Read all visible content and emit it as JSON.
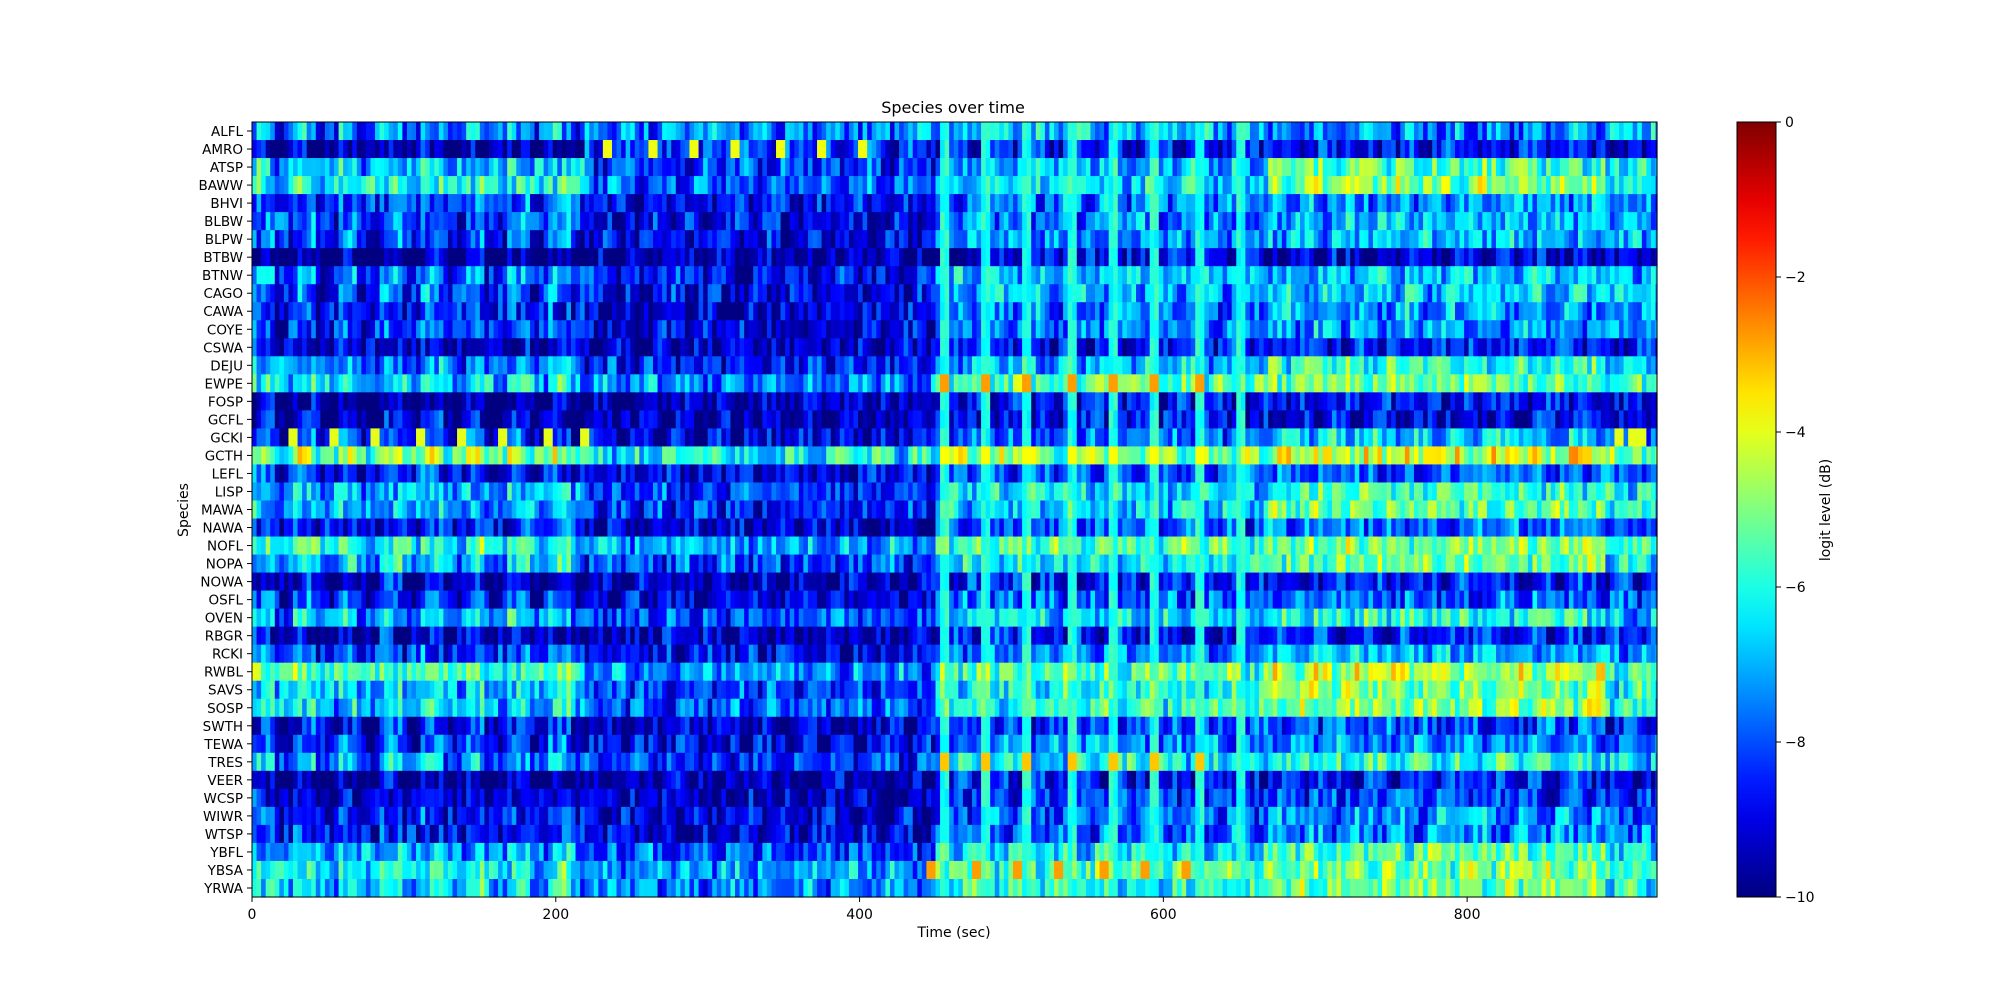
{
  "chart_data": {
    "type": "heatmap",
    "title": "Species over time",
    "xlabel": "Time (sec)",
    "ylabel": "Species",
    "x_range": [
      0,
      925
    ],
    "x_ticks": [
      0,
      200,
      400,
      600,
      800
    ],
    "species": [
      "ALFL",
      "AMRO",
      "ATSP",
      "BAWW",
      "BHVI",
      "BLBW",
      "BLPW",
      "BTBW",
      "BTNW",
      "CAGO",
      "CAWA",
      "COYE",
      "CSWA",
      "DEJU",
      "EWPE",
      "FOSP",
      "GCFL",
      "GCKI",
      "GCTH",
      "LEFL",
      "LISP",
      "MAWA",
      "NAWA",
      "NOFL",
      "NOPA",
      "NOWA",
      "OSFL",
      "OVEN",
      "RBGR",
      "RCKI",
      "RWBL",
      "SAVS",
      "SOSP",
      "SWTH",
      "TEWA",
      "TRES",
      "VEER",
      "WCSP",
      "WIWR",
      "WTSP",
      "YBFL",
      "YBSA",
      "YRWA"
    ],
    "colormap": "jet",
    "colorbar": {
      "label": "logit level (dB)",
      "range": [
        -10,
        0
      ],
      "ticks": [
        0,
        -2,
        -4,
        -6,
        -8,
        -10
      ],
      "tick_labels": [
        "0",
        "−2",
        "−4",
        "−6",
        "−8",
        "−10"
      ]
    },
    "bin_sec": 3,
    "profiles": {
      "ALFL": [
        -7.0,
        -7.5,
        -7.0,
        -7.5,
        -7.0
      ],
      "AMRO": [
        -9.3,
        -8.5,
        -8.6,
        -8.8,
        -9.3
      ],
      "ATSP": [
        -6.3,
        -8.2,
        -6.9,
        -5.6,
        -6.6
      ],
      "BAWW": [
        -5.6,
        -7.8,
        -6.6,
        -5.0,
        -6.3
      ],
      "BHVI": [
        -7.6,
        -9.0,
        -7.6,
        -7.4,
        -7.6
      ],
      "BLBW": [
        -7.4,
        -8.9,
        -7.6,
        -6.9,
        -7.4
      ],
      "BLPW": [
        -7.6,
        -9.0,
        -7.6,
        -7.0,
        -7.2
      ],
      "BTBW": [
        -9.5,
        -9.6,
        -9.2,
        -9.2,
        -9.3
      ],
      "BTNW": [
        -7.2,
        -8.8,
        -6.9,
        -6.8,
        -7.2
      ],
      "CAGO": [
        -7.5,
        -8.9,
        -7.1,
        -6.8,
        -7.2
      ],
      "CAWA": [
        -8.0,
        -9.2,
        -7.6,
        -7.2,
        -7.5
      ],
      "COYE": [
        -7.8,
        -9.1,
        -7.6,
        -7.2,
        -7.5
      ],
      "CSWA": [
        -8.7,
        -9.4,
        -8.6,
        -8.6,
        -8.7
      ],
      "DEJU": [
        -6.9,
        -8.6,
        -6.9,
        -5.9,
        -6.6
      ],
      "EWPE": [
        -5.9,
        -7.4,
        -5.6,
        -5.2,
        -5.6
      ],
      "FOSP": [
        -9.3,
        -9.5,
        -9.0,
        -8.8,
        -9.0
      ],
      "GCFL": [
        -8.8,
        -9.4,
        -8.9,
        -8.9,
        -9.0
      ],
      "GCKI": [
        -8.0,
        -9.0,
        -7.9,
        -6.6,
        -7.4
      ],
      "GCTH": [
        -4.6,
        -6.4,
        -5.0,
        -4.2,
        -5.2
      ],
      "LEFL": [
        -8.2,
        -9.0,
        -7.9,
        -7.9,
        -8.2
      ],
      "LISP": [
        -6.5,
        -8.3,
        -6.6,
        -5.7,
        -6.3
      ],
      "MAWA": [
        -6.5,
        -8.4,
        -6.6,
        -5.4,
        -6.3
      ],
      "NAWA": [
        -8.0,
        -9.2,
        -8.0,
        -7.7,
        -8.0
      ],
      "NOFL": [
        -5.4,
        -7.1,
        -5.6,
        -5.0,
        -5.9
      ],
      "NOPA": [
        -6.3,
        -8.1,
        -6.3,
        -5.3,
        -6.2
      ],
      "NOWA": [
        -8.8,
        -9.4,
        -8.7,
        -8.6,
        -8.8
      ],
      "OSFL": [
        -8.0,
        -9.1,
        -7.9,
        -7.8,
        -8.0
      ],
      "OVEN": [
        -6.5,
        -8.0,
        -6.6,
        -5.9,
        -6.9
      ],
      "RBGR": [
        -8.9,
        -9.4,
        -8.6,
        -8.5,
        -8.7
      ],
      "RCKI": [
        -7.6,
        -8.8,
        -7.5,
        -7.0,
        -7.4
      ],
      "RWBL": [
        -5.2,
        -7.3,
        -5.5,
        -4.6,
        -5.8
      ],
      "SAVS": [
        -6.2,
        -8.0,
        -6.1,
        -5.0,
        -6.1
      ],
      "SOSP": [
        -6.0,
        -7.8,
        -5.9,
        -4.9,
        -6.0
      ],
      "SWTH": [
        -8.4,
        -9.2,
        -8.1,
        -8.0,
        -8.3
      ],
      "TEWA": [
        -7.8,
        -9.0,
        -7.5,
        -7.4,
        -7.7
      ],
      "TRES": [
        -6.9,
        -8.3,
        -6.4,
        -5.9,
        -6.8
      ],
      "VEER": [
        -9.3,
        -9.5,
        -8.8,
        -8.7,
        -9.0
      ],
      "WCSP": [
        -8.8,
        -9.3,
        -8.3,
        -8.1,
        -8.5
      ],
      "WIWR": [
        -8.0,
        -9.1,
        -7.8,
        -7.4,
        -7.8
      ],
      "WTSP": [
        -8.1,
        -9.1,
        -7.8,
        -7.5,
        -7.8
      ],
      "YBFL": [
        -6.5,
        -8.0,
        -6.4,
        -5.5,
        -6.3
      ],
      "YBSA": [
        -5.9,
        -7.2,
        -5.6,
        -5.1,
        -5.9
      ],
      "YRWA": [
        -6.2,
        -7.5,
        -6.0,
        -5.3,
        -6.2
      ]
    },
    "profile_breaks_sec": [
      0,
      220,
      450,
      670,
      890,
      925
    ],
    "highlights": [
      {
        "species": "AMRO",
        "times_sec": [
          235,
          263,
          291,
          319,
          347,
          375,
          403
        ],
        "value": -3.9
      },
      {
        "species": "GCKI",
        "times_sec": [
          26,
          54,
          82,
          110,
          138,
          166,
          194,
          218,
          900,
          908,
          916
        ],
        "value": -4.0
      },
      {
        "species": "EWPE",
        "times_sec": [
          455,
          483,
          511,
          539,
          567,
          595,
          623
        ],
        "value": -2.8
      },
      {
        "species": "YBSA",
        "times_sec": [
          448,
          476,
          504,
          532,
          560,
          588,
          616
        ],
        "value": -2.8
      },
      {
        "species": "TRES",
        "times_sec": [
          455,
          483,
          511,
          539,
          567,
          595,
          623
        ],
        "value": -3.2
      },
      {
        "species": "GCTH",
        "times_sec": [
          455,
          483,
          511,
          539,
          567,
          595,
          623
        ],
        "value": -3.8
      }
    ],
    "vertical_bands_sec": [
      455,
      483,
      511,
      539,
      567,
      595,
      623,
      650
    ]
  }
}
